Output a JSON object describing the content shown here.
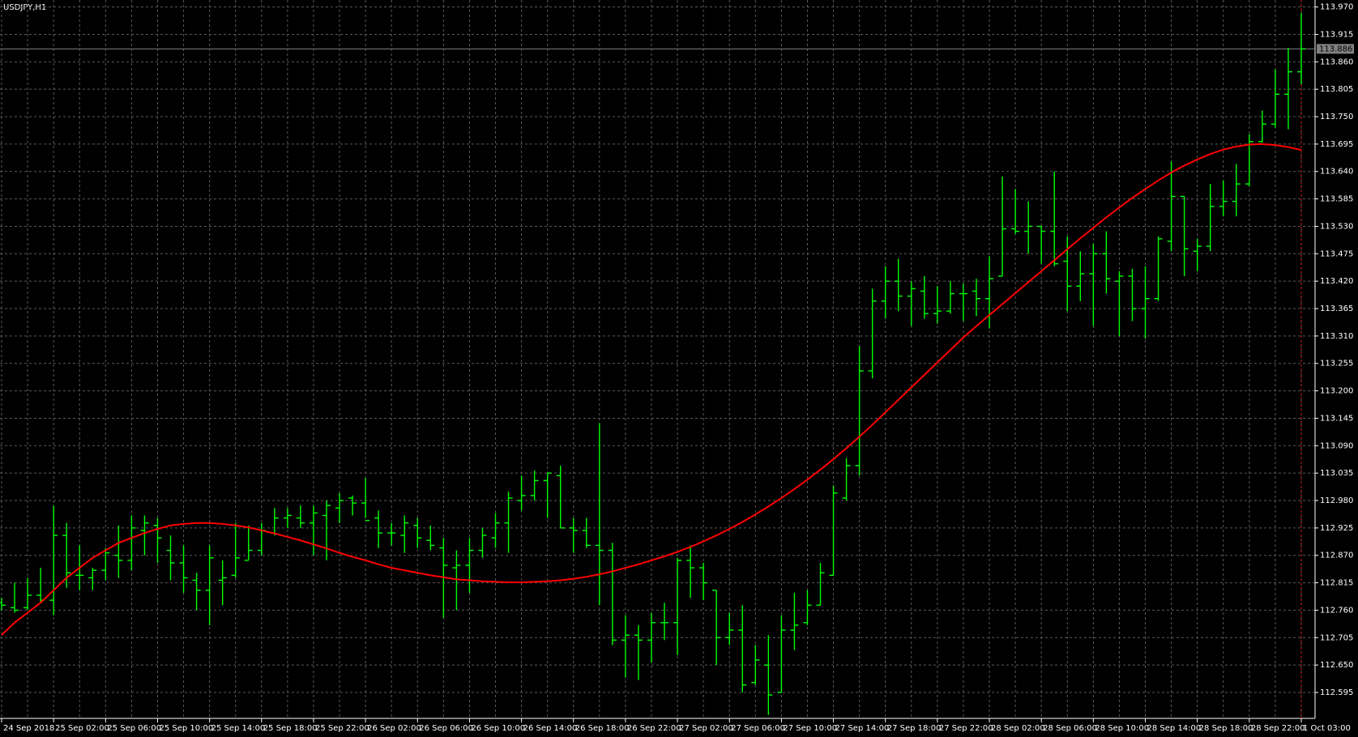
{
  "chart_data": {
    "type": "ohlc",
    "title": "USDJPY,H1",
    "color": "#00ff00",
    "grid": true,
    "categories": [
      "24 Sep 2018",
      null,
      null,
      null,
      "25 Sep 02:00",
      null,
      null,
      null,
      "25 Sep 06:00",
      null,
      null,
      null,
      "25 Sep 10:00",
      null,
      null,
      null,
      "25 Sep 14:00",
      null,
      null,
      null,
      "25 Sep 18:00",
      null,
      null,
      null,
      "25 Sep 22:00",
      null,
      null,
      null,
      "26 Sep 02:00",
      null,
      null,
      null,
      "26 Sep 06:00",
      null,
      null,
      null,
      "26 Sep 10:00",
      null,
      null,
      null,
      "26 Sep 14:00",
      null,
      null,
      null,
      "26 Sep 18:00",
      null,
      null,
      null,
      "26 Sep 22:00",
      null,
      null,
      null,
      "27 Sep 02:00",
      null,
      null,
      null,
      "27 Sep 06:00",
      null,
      null,
      null,
      "27 Sep 10:00",
      null,
      null,
      null,
      "27 Sep 14:00",
      null,
      null,
      null,
      "27 Sep 18:00",
      null,
      null,
      null,
      "27 Sep 22:00",
      null,
      null,
      null,
      "28 Sep 02:00",
      null,
      null,
      null,
      "28 Sep 06:00",
      null,
      null,
      null,
      "28 Sep 10:00",
      null,
      null,
      null,
      "28 Sep 14:00",
      null,
      null,
      null,
      "28 Sep 18:00",
      null,
      null,
      null,
      "28 Sep 22:00",
      null,
      null,
      null,
      "1 Oct 03:00"
    ],
    "open": [
      112.775,
      112.765,
      112.765,
      112.79,
      112.78,
      112.91,
      112.83,
      112.825,
      112.84,
      112.87,
      112.86,
      112.92,
      112.93,
      112.88,
      112.855,
      112.82,
      112.8,
      112.82,
      112.83,
      112.86,
      112.88,
      112.915,
      112.945,
      112.945,
      112.935,
      112.95,
      112.965,
      112.985,
      112.975,
      112.945,
      112.915,
      112.91,
      112.93,
      112.9,
      112.885,
      112.845,
      112.85,
      112.88,
      112.905,
      112.935,
      112.98,
      112.99,
      113.02,
      113.03,
      112.925,
      112.92,
      112.89,
      112.88,
      112.7,
      112.71,
      112.7,
      112.735,
      112.735,
      112.86,
      112.845,
      112.8,
      112.705,
      112.72,
      112.615,
      112.65,
      112.595,
      112.72,
      112.735,
      112.77,
      112.83,
      112.985,
      113.05,
      113.24,
      113.38,
      113.42,
      113.39,
      113.4,
      113.355,
      113.36,
      113.395,
      113.4,
      113.385,
      113.43,
      113.525,
      113.52,
      113.53,
      113.52,
      113.46,
      113.41,
      113.435,
      113.475,
      113.42,
      113.43,
      113.365,
      113.385,
      113.5,
      113.59,
      113.48,
      113.49,
      113.57,
      113.58,
      113.615,
      113.7,
      113.735,
      113.795,
      113.84
    ],
    "high": [
      112.785,
      112.815,
      112.825,
      112.845,
      112.97,
      112.935,
      112.89,
      112.845,
      112.885,
      112.93,
      112.95,
      112.95,
      112.945,
      112.91,
      112.89,
      112.835,
      112.89,
      112.86,
      112.935,
      112.93,
      112.935,
      112.965,
      112.965,
      112.97,
      112.97,
      112.98,
      112.995,
      112.99,
      113.025,
      112.96,
      112.935,
      112.95,
      112.945,
      112.93,
      112.905,
      112.88,
      112.905,
      112.925,
      112.955,
      112.998,
      113.03,
      113.04,
      113.035,
      113.05,
      112.945,
      112.945,
      113.135,
      112.895,
      112.75,
      112.73,
      112.755,
      112.775,
      112.865,
      112.89,
      112.855,
      112.8,
      112.755,
      112.77,
      112.69,
      112.71,
      112.75,
      112.795,
      112.8,
      112.855,
      113.01,
      113.065,
      113.29,
      113.405,
      113.45,
      113.465,
      113.42,
      113.43,
      113.41,
      113.42,
      113.415,
      113.425,
      113.47,
      113.63,
      113.605,
      113.58,
      113.53,
      113.64,
      113.51,
      113.48,
      113.495,
      113.52,
      113.44,
      113.445,
      113.45,
      113.51,
      113.66,
      113.59,
      113.505,
      113.615,
      113.622,
      113.655,
      113.715,
      113.762,
      113.845,
      113.888,
      113.958
    ],
    "low": [
      112.76,
      112.755,
      112.76,
      112.775,
      112.75,
      112.805,
      112.8,
      112.8,
      112.82,
      112.825,
      112.84,
      112.87,
      112.855,
      112.82,
      112.795,
      112.76,
      112.73,
      112.77,
      112.825,
      112.86,
      112.87,
      112.91,
      112.925,
      112.925,
      112.87,
      112.86,
      112.935,
      112.95,
      112.945,
      112.885,
      112.89,
      112.875,
      112.885,
      112.88,
      112.745,
      112.76,
      112.795,
      112.865,
      112.885,
      112.875,
      112.96,
      112.98,
      112.945,
      112.925,
      112.875,
      112.885,
      112.77,
      112.69,
      112.625,
      112.62,
      112.655,
      112.7,
      112.67,
      112.785,
      112.78,
      112.65,
      112.69,
      112.595,
      112.61,
      112.55,
      112.595,
      112.68,
      112.73,
      112.77,
      112.83,
      112.98,
      113.03,
      113.225,
      113.345,
      113.36,
      113.33,
      113.345,
      113.335,
      113.355,
      113.34,
      113.35,
      113.325,
      113.43,
      113.515,
      113.475,
      113.455,
      113.45,
      113.36,
      113.38,
      113.33,
      113.395,
      113.31,
      113.34,
      113.305,
      113.38,
      113.48,
      113.43,
      113.44,
      113.48,
      113.55,
      113.55,
      113.61,
      113.698,
      113.728,
      113.725,
      113.815
    ],
    "close": [
      112.77,
      112.76,
      112.79,
      112.78,
      112.91,
      112.835,
      112.83,
      112.84,
      112.875,
      112.86,
      112.925,
      112.935,
      112.905,
      112.855,
      112.825,
      112.8,
      112.865,
      112.825,
      112.865,
      112.88,
      112.92,
      112.945,
      112.95,
      112.935,
      112.955,
      112.97,
      112.98,
      112.975,
      112.94,
      112.915,
      112.915,
      112.935,
      112.905,
      112.89,
      112.85,
      112.85,
      112.88,
      112.91,
      112.935,
      112.985,
      112.99,
      113.02,
      113.035,
      112.925,
      112.92,
      112.89,
      112.88,
      112.7,
      112.71,
      112.7,
      112.735,
      112.735,
      112.86,
      112.845,
      112.815,
      112.705,
      112.72,
      112.61,
      112.66,
      112.59,
      112.72,
      112.73,
      112.77,
      112.835,
      112.995,
      113.05,
      113.24,
      113.38,
      113.42,
      113.39,
      113.405,
      113.355,
      113.36,
      113.395,
      113.395,
      113.385,
      113.425,
      113.525,
      113.52,
      113.53,
      113.52,
      113.455,
      113.41,
      113.435,
      113.475,
      113.425,
      113.43,
      113.365,
      113.385,
      113.505,
      113.59,
      113.485,
      113.49,
      113.57,
      113.58,
      113.615,
      113.7,
      113.735,
      113.795,
      113.84,
      113.886
    ],
    "overlays": [
      {
        "type": "line",
        "color": "#ff0000",
        "values": [
          112.71,
          112.735,
          112.755,
          112.775,
          112.8,
          112.825,
          112.845,
          112.865,
          112.88,
          112.895,
          112.905,
          112.915,
          112.923,
          112.93,
          112.933,
          112.935,
          112.935,
          112.933,
          112.93,
          112.926,
          112.92,
          112.914,
          112.907,
          112.9,
          112.892,
          112.884,
          112.875,
          112.867,
          112.86,
          112.852,
          112.845,
          112.84,
          112.835,
          112.83,
          112.826,
          112.822,
          112.82,
          112.818,
          112.817,
          112.816,
          112.816,
          112.817,
          112.818,
          112.82,
          112.823,
          112.827,
          112.832,
          112.838,
          112.845,
          112.852,
          112.86,
          112.868,
          112.877,
          112.887,
          112.898,
          112.91,
          112.923,
          112.937,
          112.952,
          112.968,
          112.985,
          113.003,
          113.022,
          113.042,
          113.063,
          113.085,
          113.108,
          113.132,
          113.157,
          113.182,
          113.207,
          113.232,
          113.257,
          113.282,
          113.307,
          113.33,
          113.352,
          113.374,
          113.396,
          113.418,
          113.44,
          113.462,
          113.484,
          113.506,
          113.527,
          113.548,
          113.568,
          113.587,
          113.605,
          113.622,
          113.638,
          113.652,
          113.664,
          113.675,
          113.684,
          113.69,
          113.694,
          113.695,
          113.693,
          113.689,
          113.683
        ]
      }
    ],
    "current_price": {
      "value": 113.886,
      "color": "#808080"
    },
    "ylim": [
      112.543,
      113.984
    ],
    "yticks": [
      {
        "value": 113.97,
        "label": "113.970"
      },
      113.915,
      {
        "value": 113.86,
        "label": "113.860"
      },
      113.805,
      {
        "value": 113.75,
        "label": "113.750"
      },
      113.695,
      {
        "value": 113.64,
        "label": "113.640"
      },
      113.585,
      {
        "value": 113.53,
        "label": "113.530"
      },
      113.475,
      {
        "value": 113.42,
        "label": "113.420"
      },
      113.365,
      {
        "value": 113.31,
        "label": "113.310"
      },
      113.255,
      {
        "value": 113.2,
        "label": "113.200"
      },
      113.145,
      {
        "value": 113.09,
        "label": "113.090"
      },
      113.035,
      {
        "value": 112.98,
        "label": "112.980"
      },
      112.925,
      {
        "value": 112.87,
        "label": "112.870"
      },
      112.815,
      {
        "value": 112.76,
        "label": "112.760"
      },
      112.705,
      {
        "value": 112.65,
        "label": "112.650"
      },
      112.595
    ]
  }
}
